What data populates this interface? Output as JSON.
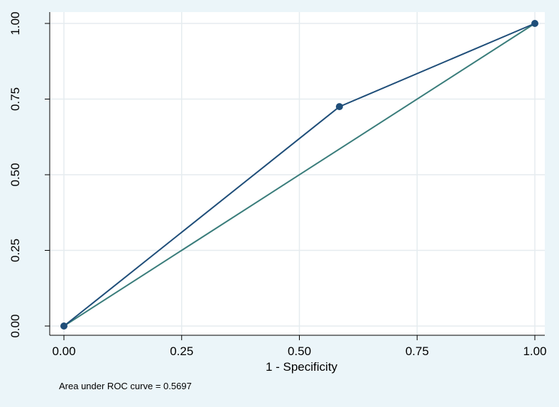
{
  "chart_data": {
    "type": "line",
    "title": "",
    "xlabel": "1 - Specificity",
    "ylabel": "",
    "xlim": [
      0,
      1
    ],
    "ylim": [
      0,
      1
    ],
    "xticks": [
      0,
      0.25,
      0.5,
      0.75,
      1
    ],
    "yticks": [
      0,
      0.25,
      0.5,
      0.75,
      1
    ],
    "xtick_labels": [
      "0.00",
      "0.25",
      "0.50",
      "0.75",
      "1.00"
    ],
    "ytick_labels": [
      "0.00",
      "0.25",
      "0.50",
      "0.75",
      "1.00"
    ],
    "grid": true,
    "legend": "none",
    "series": [
      {
        "role": "roc-curve",
        "color": "#1f4e79",
        "markers": true,
        "points": [
          {
            "x": 0,
            "y": 0
          },
          {
            "x": 0.585,
            "y": 0.725
          },
          {
            "x": 1,
            "y": 1
          }
        ]
      },
      {
        "role": "reference-line",
        "color": "#3a7d7b",
        "markers": false,
        "points": [
          {
            "x": 0,
            "y": 0
          },
          {
            "x": 1,
            "y": 1
          }
        ]
      }
    ],
    "note": "Area under ROC curve = 0.5697"
  },
  "colors": {
    "background": "#ebf5f9",
    "plot_area": "#ffffff",
    "grid": "#e5ecef",
    "axis": "#000000"
  }
}
